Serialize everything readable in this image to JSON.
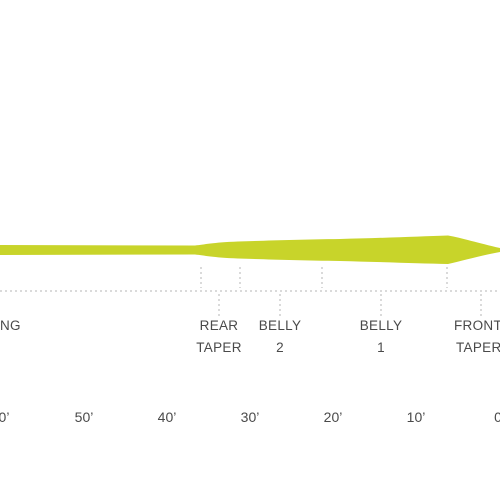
{
  "line_color": "#c8d42a",
  "segment_labels": {
    "running": "NG",
    "rear_taper": [
      "REAR",
      "TAPER"
    ],
    "belly_2": [
      "BELLY",
      "2"
    ],
    "belly_1": [
      "BELLY",
      "1"
    ],
    "front_taper": [
      "FRONT",
      "TAPER"
    ]
  },
  "distance_ticks": [
    "0’",
    "50’",
    "40’",
    "30’",
    "20’",
    "10’",
    "0"
  ]
}
